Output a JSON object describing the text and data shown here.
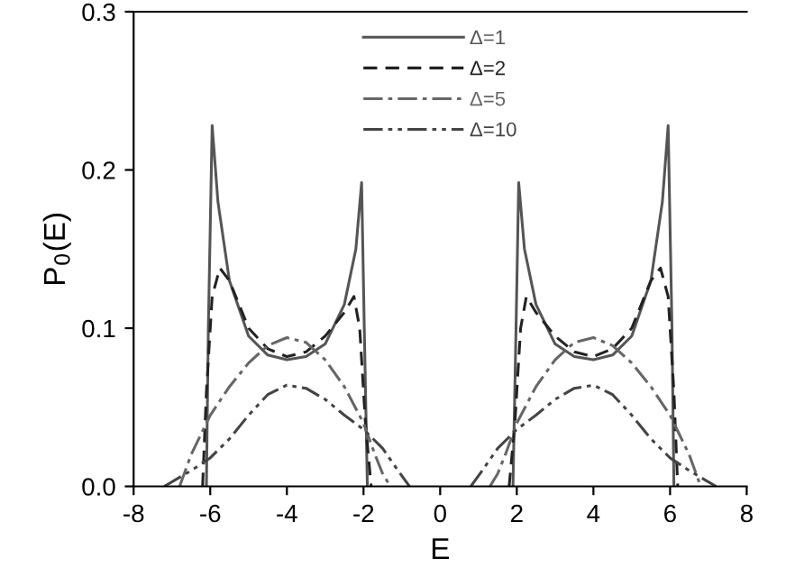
{
  "chart_data": {
    "type": "line",
    "xlabel": "E",
    "ylabel": "P$_{0}$(E)",
    "xlim": [
      -8,
      8
    ],
    "xticks": [
      -8,
      -6,
      -4,
      -2,
      0,
      2,
      4,
      6,
      8
    ],
    "ylim": [
      0,
      0.3
    ],
    "yticks": [
      {
        "value": 0,
        "label": "0.0"
      },
      0.1,
      0.2,
      0.3
    ],
    "grid": false,
    "legend": "top",
    "marker": "none",
    "series": [
      {
        "name": "Δ=1",
        "color": "#555555",
        "line_style": "solid",
        "x": [
          -6.1,
          -6.05,
          -5.95,
          -5.8,
          -5.5,
          -5,
          -4.5,
          -4,
          -3.5,
          -3,
          -2.5,
          -2.2,
          -2.05,
          -1.98,
          -1.9,
          null,
          1.9,
          1.98,
          2.05,
          2.2,
          2.5,
          3,
          3.5,
          4,
          4.5,
          5,
          5.5,
          5.8,
          5.95,
          6.05,
          6.1
        ],
        "values": [
          0,
          0.1,
          0.228,
          0.18,
          0.13,
          0.095,
          0.083,
          0.08,
          0.082,
          0.09,
          0.115,
          0.15,
          0.192,
          0.1,
          0,
          null,
          0,
          0.1,
          0.192,
          0.15,
          0.115,
          0.09,
          0.082,
          0.08,
          0.083,
          0.095,
          0.13,
          0.18,
          0.228,
          0.1,
          0
        ]
      },
      {
        "name": "Δ=2",
        "color": "#222222",
        "line_style": "dashed",
        "x": [
          -6.2,
          -6.1,
          -5.95,
          -5.75,
          -5.5,
          -5,
          -4.5,
          -4,
          -3.5,
          -3,
          -2.5,
          -2.25,
          -2.1,
          -1.95,
          -1.8,
          null,
          1.8,
          1.95,
          2.1,
          2.25,
          2.5,
          3,
          3.5,
          4,
          4.5,
          5,
          5.5,
          5.75,
          5.95,
          6.1,
          6.2
        ],
        "values": [
          0,
          0.06,
          0.12,
          0.138,
          0.13,
          0.1,
          0.087,
          0.082,
          0.085,
          0.095,
          0.11,
          0.12,
          0.1,
          0.04,
          0,
          null,
          0,
          0.04,
          0.1,
          0.12,
          0.11,
          0.095,
          0.085,
          0.082,
          0.087,
          0.1,
          0.13,
          0.138,
          0.12,
          0.06,
          0
        ]
      },
      {
        "name": "Δ=5",
        "color": "#666666",
        "line_style": "dashdot",
        "x": [
          -6.8,
          -6.5,
          -6,
          -5.5,
          -5,
          -4.5,
          -4,
          -3.5,
          -3,
          -2.5,
          -2,
          -1.7,
          -1.5,
          -1.3,
          null,
          1.3,
          1.5,
          1.7,
          2,
          2.5,
          3,
          3.5,
          4,
          4.5,
          5,
          5.5,
          6,
          6.5,
          6.8
        ],
        "values": [
          0,
          0.02,
          0.045,
          0.063,
          0.078,
          0.089,
          0.094,
          0.091,
          0.08,
          0.063,
          0.04,
          0.02,
          0.008,
          0,
          null,
          0,
          0.008,
          0.02,
          0.04,
          0.063,
          0.08,
          0.091,
          0.094,
          0.089,
          0.078,
          0.063,
          0.045,
          0.02,
          0
        ]
      },
      {
        "name": "Δ=10",
        "color": "#444444",
        "line_style": "dashdotdot",
        "x": [
          -7.2,
          -6.5,
          -6,
          -5.5,
          -5,
          -4.5,
          -4,
          -3.5,
          -3,
          -2.5,
          -2,
          -1.5,
          -1.1,
          -0.8,
          null,
          0.8,
          1.1,
          1.5,
          2,
          2.5,
          3,
          3.5,
          4,
          4.5,
          5,
          5.5,
          6,
          6.5,
          7.2
        ],
        "values": [
          0,
          0.01,
          0.018,
          0.03,
          0.045,
          0.058,
          0.064,
          0.062,
          0.055,
          0.045,
          0.036,
          0.024,
          0.01,
          0,
          null,
          0,
          0.01,
          0.024,
          0.036,
          0.045,
          0.055,
          0.062,
          0.064,
          0.058,
          0.045,
          0.03,
          0.018,
          0.01,
          0
        ]
      }
    ]
  }
}
